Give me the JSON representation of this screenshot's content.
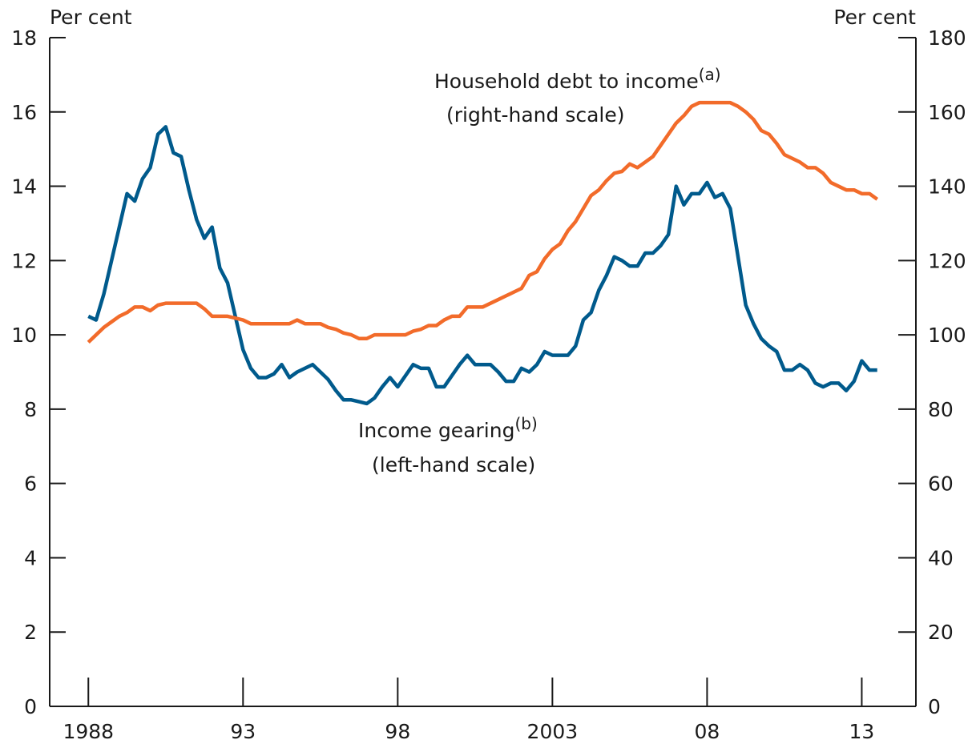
{
  "chart_data": {
    "type": "line",
    "y_label": "Per cent",
    "y2_label": "Per cent",
    "xlim": [
      1986.75,
      2014.75
    ],
    "xticks": [
      1988,
      {
        "value": 1993,
        "label": "93"
      },
      {
        "value": 1998,
        "label": "98"
      },
      2003,
      {
        "value": 2008,
        "label": "08"
      },
      {
        "value": 2013,
        "label": "13"
      }
    ],
    "ylim": [
      0,
      18
    ],
    "yticks": [
      0,
      2,
      4,
      6,
      8,
      10,
      12,
      14,
      16,
      18
    ],
    "y2lim": [
      0,
      180
    ],
    "y2ticks": [
      0,
      20,
      40,
      60,
      80,
      100,
      120,
      140,
      160,
      180
    ],
    "x": [
      1988,
      1988.25,
      1988.5,
      1988.75,
      1989,
      1989.25,
      1989.5,
      1989.75,
      1990,
      1990.25,
      1990.5,
      1990.75,
      1991,
      1991.25,
      1991.5,
      1991.75,
      1992,
      1992.25,
      1992.5,
      1992.75,
      1993,
      1993.25,
      1993.5,
      1993.75,
      1994,
      1994.25,
      1994.5,
      1994.75,
      1995,
      1995.25,
      1995.5,
      1995.75,
      1996,
      1996.25,
      1996.5,
      1996.75,
      1997,
      1997.25,
      1997.5,
      1997.75,
      1998,
      1998.25,
      1998.5,
      1998.75,
      1999,
      1999.25,
      1999.5,
      1999.75,
      2000,
      2000.25,
      2000.5,
      2000.75,
      2001,
      2001.25,
      2001.5,
      2001.75,
      2002,
      2002.25,
      2002.5,
      2002.75,
      2003,
      2003.25,
      2003.5,
      2003.75,
      2004,
      2004.25,
      2004.5,
      2004.75,
      2005,
      2005.25,
      2005.5,
      2005.75,
      2006,
      2006.25,
      2006.5,
      2006.75,
      2007,
      2007.25,
      2007.5,
      2007.75,
      2008,
      2008.25,
      2008.5,
      2008.75,
      2009,
      2009.25,
      2009.5,
      2009.75,
      2010,
      2010.25,
      2010.5,
      2010.75,
      2011,
      2011.25,
      2011.5,
      2011.75,
      2012,
      2012.25,
      2012.5,
      2012.75,
      2013,
      2013.25,
      2013.5
    ],
    "series": [
      {
        "name": "Income gearing",
        "color": "#005a8c",
        "axis": "y",
        "values": [
          10.5,
          10.4,
          11.1,
          12.0,
          12.9,
          13.8,
          13.6,
          14.2,
          14.5,
          15.4,
          15.6,
          14.9,
          14.8,
          13.9,
          13.1,
          12.6,
          12.9,
          11.8,
          11.4,
          10.5,
          9.6,
          9.1,
          8.85,
          8.85,
          8.95,
          9.2,
          8.85,
          9.0,
          9.1,
          9.2,
          9.0,
          8.8,
          8.5,
          8.25,
          8.25,
          8.2,
          8.15,
          8.3,
          8.6,
          8.85,
          8.6,
          8.9,
          9.2,
          9.1,
          9.1,
          8.6,
          8.6,
          8.9,
          9.2,
          9.45,
          9.2,
          9.2,
          9.2,
          9.0,
          8.75,
          8.75,
          9.1,
          9.0,
          9.2,
          9.55,
          9.45,
          9.45,
          9.45,
          9.7,
          10.4,
          10.6,
          11.2,
          11.6,
          12.1,
          12.0,
          11.85,
          11.85,
          12.2,
          12.2,
          12.4,
          12.7,
          14.0,
          13.5,
          13.8,
          13.8,
          14.1,
          13.7,
          13.8,
          13.4,
          12.1,
          10.8,
          10.3,
          9.9,
          9.7,
          9.55,
          9.05,
          9.05,
          9.2,
          9.05,
          8.7,
          8.6,
          8.7,
          8.7,
          8.5,
          8.75,
          9.3,
          9.05,
          9.05
        ]
      },
      {
        "name": "Household debt to income",
        "color": "#f26b2a",
        "axis": "y2",
        "values": [
          98,
          100,
          102,
          103.5,
          105,
          106,
          107.5,
          107.5,
          106.5,
          108,
          108.5,
          108.5,
          108.5,
          108.5,
          108.5,
          107,
          105,
          105,
          105,
          104.5,
          104,
          103,
          103,
          103,
          103,
          103,
          103,
          104,
          103,
          103,
          103,
          102,
          101.5,
          100.5,
          100,
          99,
          99,
          100,
          100,
          100,
          100,
          100,
          101,
          101.5,
          102.5,
          102.5,
          104,
          105,
          105,
          107.5,
          107.5,
          107.5,
          108.5,
          109.5,
          110.5,
          111.5,
          112.5,
          116,
          117,
          120.5,
          123,
          124.5,
          128,
          130.5,
          134,
          137.5,
          139,
          141.5,
          143.5,
          144,
          146,
          145,
          146.5,
          148,
          151,
          154,
          157,
          159,
          161.5,
          162.5,
          162.5,
          162.5,
          162.5,
          162.5,
          161.5,
          160,
          158,
          155,
          154,
          151.5,
          148.5,
          147.5,
          146.5,
          145,
          145,
          143.5,
          141,
          140,
          139,
          139,
          138,
          138,
          136.5
        ]
      }
    ],
    "annotations": [
      {
        "text": "Household debt to income",
        "note": "(a)",
        "scale": "(right-hand scale)"
      },
      {
        "text": "Income gearing",
        "note": "(b)",
        "scale": "(left-hand scale)"
      }
    ]
  }
}
